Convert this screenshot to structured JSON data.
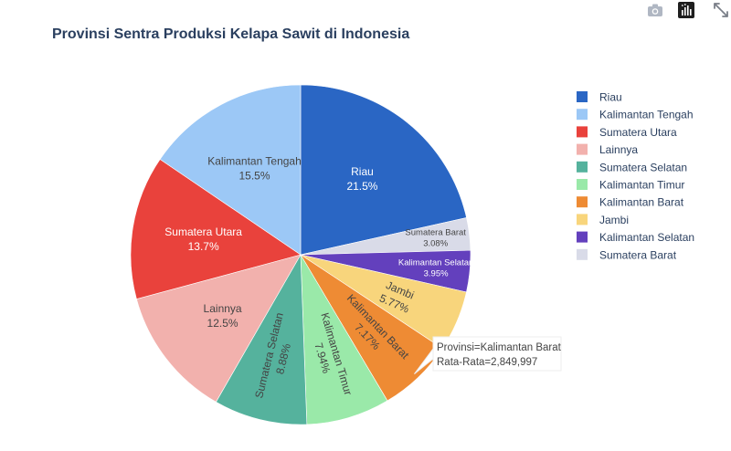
{
  "modebar": {
    "camera_icon": "camera-icon",
    "plotly_logo_icon": "plotly-logo-icon",
    "expand_icon": "expand-icon"
  },
  "chart_data": {
    "type": "pie",
    "title": "Provinsi Sentra Produksi Kelapa Sawit di Indonesia",
    "categories": [
      "Riau",
      "Sumatera Barat",
      "Kalimantan Selatan",
      "Jambi",
      "Kalimantan Barat",
      "Kalimantan Timur",
      "Sumatera Selatan",
      "Lainnya",
      "Sumatera Utara",
      "Kalimantan Tengah"
    ],
    "values": [
      21.5,
      3.08,
      3.95,
      5.77,
      7.17,
      7.94,
      8.88,
      12.5,
      13.7,
      15.5
    ],
    "value_labels": [
      "21.5%",
      "3.08%",
      "3.95%",
      "5.77%",
      "7.17%",
      "7.94%",
      "8.88%",
      "12.5%",
      "13.7%",
      "15.5%"
    ],
    "colors": [
      "#2a66c4",
      "#d9dbe8",
      "#6340bd",
      "#f8d57c",
      "#ee8b34",
      "#9ae9a9",
      "#55b29d",
      "#f2b1ad",
      "#e9423c",
      "#9cc8f6"
    ],
    "legend": {
      "position": "right",
      "items": [
        "Riau",
        "Kalimantan Tengah",
        "Sumatera Utara",
        "Lainnya",
        "Sumatera Selatan",
        "Kalimantan Timur",
        "Kalimantan Barat",
        "Jambi",
        "Kalimantan Selatan",
        "Sumatera Barat"
      ],
      "colors": [
        "#2a66c4",
        "#9cc8f6",
        "#e9423c",
        "#f2b1ad",
        "#55b29d",
        "#9ae9a9",
        "#ee8b34",
        "#f8d57c",
        "#6340bd",
        "#d9dbe8"
      ]
    },
    "tooltip": {
      "line1": "Provinsi=Kalimantan Barat",
      "line2": "Rata-Rata=2,849,997",
      "category": "Kalimantan Barat"
    }
  }
}
